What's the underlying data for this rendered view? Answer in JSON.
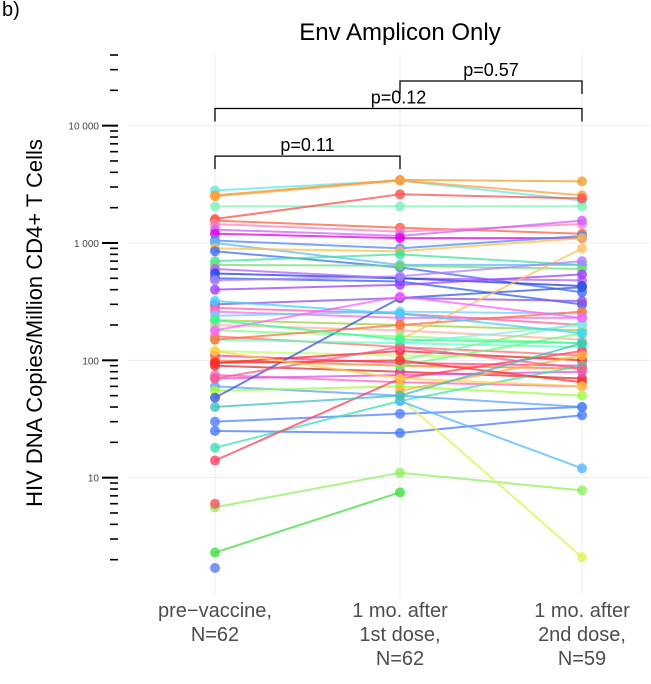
{
  "panel_tag": "b)",
  "chart_data": {
    "type": "line",
    "title": "Env Amplicon Only",
    "ylabel": "HIV DNA Copies/Million CD4+ T Cells",
    "y_scale": "log10",
    "ylim": [
      1,
      40000
    ],
    "y_ticks": [
      {
        "value": 10,
        "label": "10"
      },
      {
        "value": 100,
        "label": "100"
      },
      {
        "value": 1000,
        "label": "1 000"
      },
      {
        "value": 10000,
        "label": "10 000"
      }
    ],
    "categories": [
      {
        "lines": [
          "pre−vaccine,",
          "N=62"
        ]
      },
      {
        "lines": [
          "1 mo. after",
          "1st dose,",
          "N=62"
        ]
      },
      {
        "lines": [
          "1 mo. after",
          "2nd dose,",
          "N=59"
        ]
      }
    ],
    "comparisons": [
      {
        "from": 0,
        "to": 1,
        "label": "p=0.11",
        "level": 5500
      },
      {
        "from": 0,
        "to": 2,
        "label": "p=0.12",
        "level": 14000
      },
      {
        "from": 1,
        "to": 2,
        "label": "p=0.57",
        "level": 24000
      }
    ],
    "series": [
      {
        "color": "#5ee8e8",
        "values": [
          2800,
          3400,
          2300
        ]
      },
      {
        "color": "#f0a030",
        "values": [
          2550,
          3450,
          3350
        ]
      },
      {
        "color": "#ff9f3f",
        "values": [
          2500,
          3400,
          2550
        ]
      },
      {
        "color": "#7ff0b8",
        "values": [
          2050,
          2050,
          2050
        ]
      },
      {
        "color": "#ff5050",
        "values": [
          1600,
          2600,
          2400
        ]
      },
      {
        "color": "#ff6040",
        "values": [
          1550,
          1350,
          1200
        ]
      },
      {
        "color": "#ff80c0",
        "values": [
          1450,
          1250,
          1450
        ]
      },
      {
        "color": "#d060ff",
        "values": [
          1300,
          1150,
          1550
        ]
      },
      {
        "color": "#e000e0",
        "values": [
          1200,
          1100,
          1100
        ]
      },
      {
        "color": "#4d8aff",
        "values": [
          1050,
          900,
          1150
        ]
      },
      {
        "color": "#60b8ff",
        "values": [
          1000,
          650,
          650
        ]
      },
      {
        "color": "#ffc040",
        "values": [
          900,
          850,
          1100
        ]
      },
      {
        "color": "#3c6cff",
        "values": [
          850,
          620,
          380
        ]
      },
      {
        "color": "#40e0a0",
        "values": [
          700,
          800,
          650
        ]
      },
      {
        "color": "#70e070",
        "values": [
          650,
          640,
          600
        ]
      },
      {
        "color": "#b060ff",
        "values": [
          600,
          500,
          480
        ]
      },
      {
        "color": "#2040e0",
        "values": [
          550,
          500,
          430
        ]
      },
      {
        "color": "#3060f0",
        "values": [
          500,
          470,
          300
        ]
      },
      {
        "color": "#a040ff",
        "values": [
          400,
          440,
          540
        ]
      },
      {
        "color": "#9050e0",
        "values": [
          300,
          340,
          320
        ]
      },
      {
        "color": "#ff60a0",
        "values": [
          280,
          250,
          200
        ]
      },
      {
        "color": "#f070e0",
        "values": [
          260,
          230,
          230
        ]
      },
      {
        "color": "#70d0ff",
        "values": [
          240,
          260,
          250
        ]
      },
      {
        "color": "#a0d040",
        "values": [
          220,
          200,
          180
        ]
      },
      {
        "color": "#ffb0a0",
        "values": [
          200,
          180,
          150
        ]
      },
      {
        "color": "#80ff80",
        "values": [
          180,
          160,
          140
        ]
      },
      {
        "color": "#ff7070",
        "values": [
          160,
          130,
          110
        ]
      },
      {
        "color": "#60ffc0",
        "values": [
          150,
          140,
          130
        ]
      },
      {
        "color": "#c0ff60",
        "values": [
          120,
          110,
          105
        ]
      },
      {
        "color": "#ff4090",
        "values": [
          110,
          95,
          90
        ]
      },
      {
        "color": "#ff8030",
        "values": [
          100,
          90,
          85
        ]
      },
      {
        "color": "#ff2040",
        "values": [
          95,
          120,
          100
        ]
      },
      {
        "color": "#e03030",
        "values": [
          90,
          80,
          70
        ]
      },
      {
        "color": "#ff60c0",
        "values": [
          75,
          65,
          60
        ]
      },
      {
        "color": "#e050e0",
        "values": [
          70,
          75,
          80
        ]
      },
      {
        "color": "#60a0ff",
        "values": [
          60,
          50,
          40
        ]
      },
      {
        "color": "#a0ff40",
        "values": [
          55,
          60,
          50
        ]
      },
      {
        "color": "#3858e0",
        "values": [
          48,
          340,
          420
        ]
      },
      {
        "color": "#5080ff",
        "values": [
          30,
          35,
          40
        ]
      },
      {
        "color": "#4878ff",
        "values": [
          25,
          24,
          34
        ]
      },
      {
        "color": "#40e0b0",
        "values": [
          18,
          45,
          90
        ]
      },
      {
        "color": "#ff4060",
        "values": [
          14,
          70,
          120
        ]
      },
      {
        "color": "#90f060",
        "values": [
          5.6,
          11,
          7.8
        ]
      },
      {
        "color": "#40e040",
        "values": [
          2.3,
          7.5,
          null
        ]
      },
      {
        "color": "#e0f050",
        "values": [
          null,
          48,
          2.1
        ]
      },
      {
        "color": "#50b8ff",
        "values": [
          null,
          45,
          12
        ]
      },
      {
        "color": "#60ff80",
        "values": [
          null,
          90,
          170
        ]
      },
      {
        "color": "#ffc060",
        "values": [
          null,
          150,
          900
        ]
      },
      {
        "color": "#80f0a0",
        "values": [
          null,
          100,
          210
        ]
      },
      {
        "color": "#80f0f0",
        "values": [
          null,
          140,
          200
        ]
      },
      {
        "color": "#ffb040",
        "values": [
          null,
          55,
          110
        ]
      },
      {
        "color": "#ff5060",
        "values": [
          6,
          null,
          null
        ]
      },
      {
        "color": "#5a7cf0",
        "values": [
          1.7,
          null,
          null
        ]
      },
      {
        "color": "#f06090",
        "values": [
          70,
          130,
          85
        ]
      },
      {
        "color": "#ff7040",
        "values": [
          150,
          200,
          260
        ]
      },
      {
        "color": "#40d0ff",
        "values": [
          320,
          250,
          170
        ]
      },
      {
        "color": "#b080ff",
        "values": [
          480,
          520,
          700
        ]
      },
      {
        "color": "#ff60ff",
        "values": [
          180,
          350,
          230
        ]
      },
      {
        "color": "#30ff90",
        "values": [
          220,
          150,
          140
        ]
      },
      {
        "color": "#ff3030",
        "values": [
          95,
          100,
          65
        ]
      },
      {
        "color": "#ffd040",
        "values": [
          120,
          70,
          60
        ]
      },
      {
        "color": "#40c0c0",
        "values": [
          40,
          50,
          140
        ]
      }
    ]
  }
}
